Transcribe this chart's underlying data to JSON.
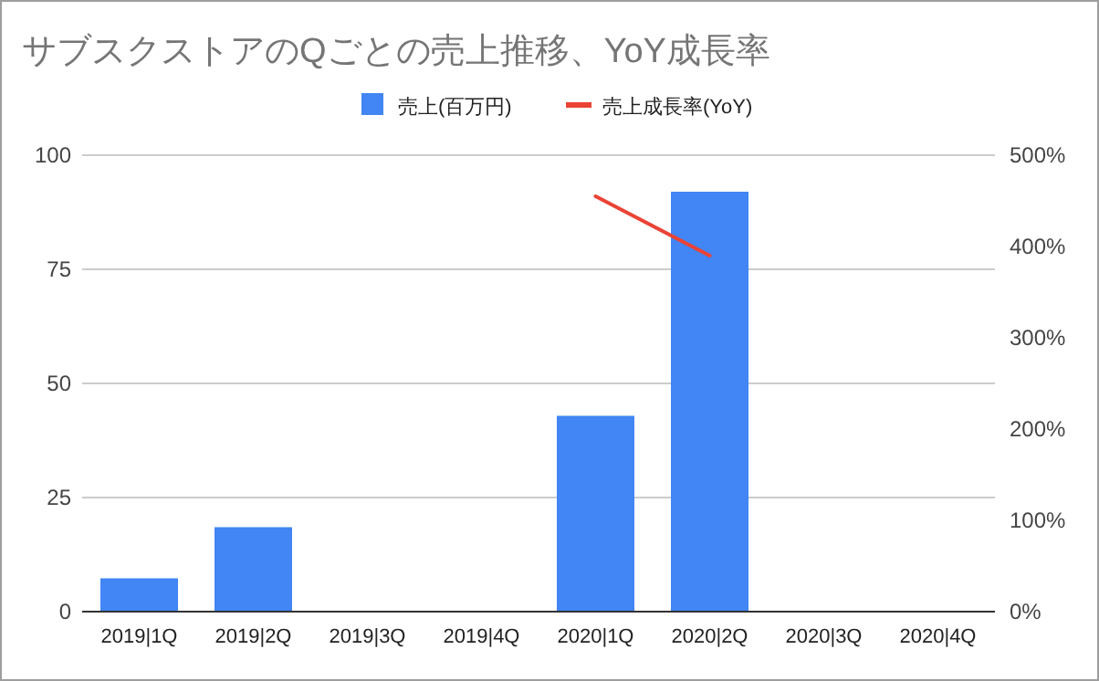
{
  "chart_data": {
    "type": "bar",
    "title": "サブスクストアのQごとの売上推移、YoY成長率",
    "categories": [
      "2019|1Q",
      "2019|2Q",
      "2019|3Q",
      "2019|4Q",
      "2020|1Q",
      "2020|2Q",
      "2020|3Q",
      "2020|4Q"
    ],
    "series": [
      {
        "name": "売上(百万円)",
        "color": "#4285f4",
        "values": [
          7.3,
          18.5,
          null,
          null,
          42.9,
          92,
          null,
          null
        ]
      },
      {
        "name": "売上成長率(YoY)",
        "type": "line",
        "axis": "y2",
        "color": "#ea4335",
        "values": [
          null,
          null,
          null,
          null,
          455,
          390,
          null,
          null
        ]
      }
    ],
    "ylim": [
      0,
      100
    ],
    "yticks": [
      0,
      25,
      50,
      75,
      100
    ],
    "y2lim": [
      0,
      500
    ],
    "y2ticks": [
      {
        "value": 0,
        "label": "0%"
      },
      {
        "value": 100,
        "label": "100%"
      },
      {
        "value": 200,
        "label": "200%"
      },
      {
        "value": 300,
        "label": "300%"
      },
      {
        "value": 400,
        "label": "400%"
      },
      {
        "value": 500,
        "label": "500%"
      }
    ],
    "grid": "y",
    "legend": "top"
  }
}
